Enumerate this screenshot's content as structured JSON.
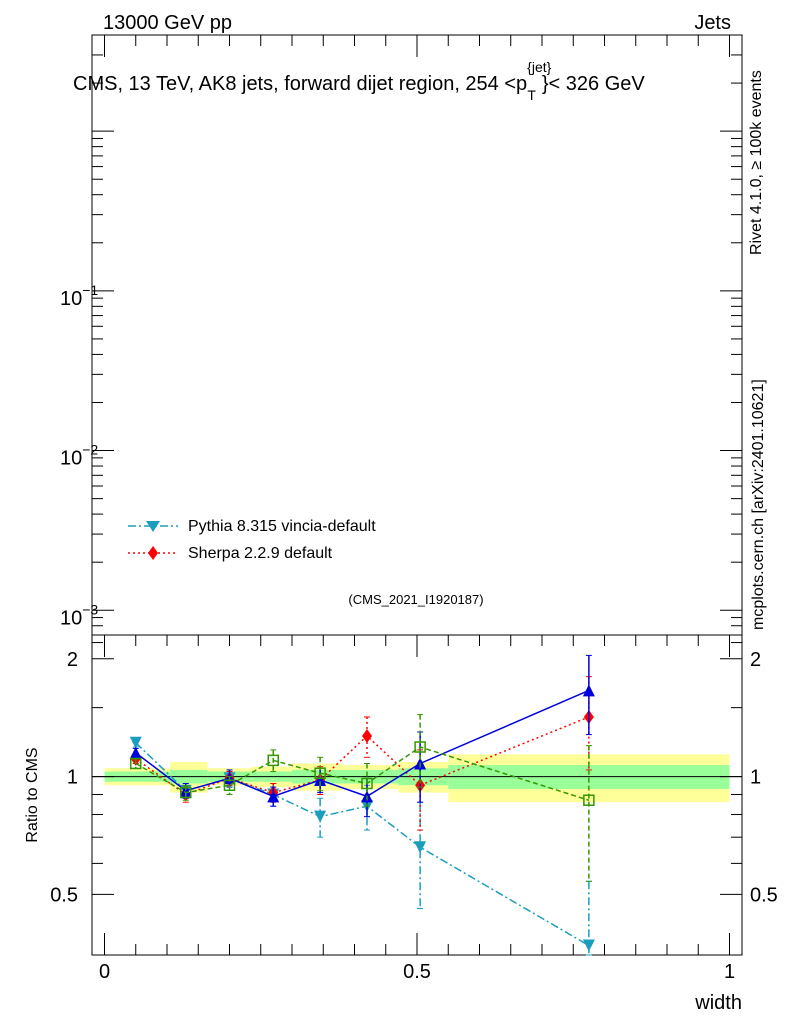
{
  "header": {
    "left": "13000 GeV pp",
    "right": "Jets",
    "title_main": "CMS, 13 TeV, AK8 jets, forward dijet region, 254 <p",
    "title_sup": "{jet}",
    "title_sub": "T",
    "title_end": "}< 326 GeV",
    "side_rivet": "Rivet 4.1.0, ≥ 100k events",
    "side_mcplots": "mcplots.cern.ch [arXiv:2401.10621]",
    "analysis": "(CMS_2021_I1920187)"
  },
  "legend": [
    {
      "label": "Pythia 8.315 vincia-default",
      "color": "#1a9ebc"
    },
    {
      "label": "Sherpa 2.2.9 default",
      "color": "#ff0000"
    }
  ],
  "colors": {
    "pythia": "#1a9ebc",
    "sherpa": "#ff0000",
    "blue": "#0000dd",
    "green": "#339900",
    "band_green": "#99ff99",
    "band_yellow": "#ffff99",
    "annotation": "#999999"
  },
  "chart_data": [
    {
      "type": "line",
      "panel": "main",
      "yscale": "log",
      "ylim": [
        0.0007,
        4
      ],
      "tick_labels": [
        {
          "base": "10",
          "exp": "−1",
          "value": 0.1
        },
        {
          "base": "10",
          "exp": "−2",
          "value": 0.01
        },
        {
          "base": "10",
          "exp": "−3",
          "value": 0.001
        }
      ],
      "series": []
    },
    {
      "type": "line",
      "panel": "ratio",
      "xlabel": "width",
      "ylabel": "Ratio to CMS",
      "xlim": [
        -0.02,
        1.02
      ],
      "ylim": [
        0.35,
        2.3
      ],
      "yscale": "log",
      "x_ticks": [
        {
          "v": 0,
          "label": "0"
        },
        {
          "v": 0.5,
          "label": "0.5"
        },
        {
          "v": 1,
          "label": "1"
        }
      ],
      "y_ticks": [
        {
          "v": 0.5,
          "label": "0.5"
        },
        {
          "v": 1,
          "label": "1"
        },
        {
          "v": 2,
          "label": "2"
        }
      ],
      "bins": [
        {
          "lo": 0.0,
          "hi": 0.105,
          "stat": 0.03,
          "tot": 0.05
        },
        {
          "lo": 0.105,
          "hi": 0.165,
          "stat": 0.04,
          "tot": 0.09
        },
        {
          "lo": 0.165,
          "hi": 0.235,
          "stat": 0.03,
          "tot": 0.05
        },
        {
          "lo": 0.235,
          "hi": 0.3,
          "stat": 0.03,
          "tot": 0.06
        },
        {
          "lo": 0.3,
          "hi": 0.38,
          "stat": 0.04,
          "tot": 0.08
        },
        {
          "lo": 0.38,
          "hi": 0.47,
          "stat": 0.04,
          "tot": 0.07
        },
        {
          "lo": 0.47,
          "hi": 0.55,
          "stat": 0.05,
          "tot": 0.09
        },
        {
          "lo": 0.55,
          "hi": 1.0,
          "stat": 0.07,
          "tot": 0.14
        }
      ],
      "series": [
        {
          "name": "Pythia 8.315 vincia-default",
          "color": "#1a9ebc",
          "marker": "triangle-down",
          "dash": "8,3,2,3",
          "x": [
            0.05,
            0.13,
            0.2,
            0.27,
            0.345,
            0.42,
            0.505,
            0.775
          ],
          "y": [
            1.22,
            0.92,
            0.99,
            0.9,
            0.79,
            0.84,
            0.66,
            0.37
          ],
          "err": [
            0.03,
            0.04,
            0.04,
            0.06,
            0.09,
            0.11,
            0.2,
            0.17
          ]
        },
        {
          "name": "Sherpa 2.2.9 default",
          "color": "#ff0000",
          "marker": "diamond",
          "dash": "2,3",
          "x": [
            0.05,
            0.13,
            0.2,
            0.27,
            0.345,
            0.42,
            0.505,
            0.775
          ],
          "y": [
            1.11,
            0.9,
            0.99,
            0.91,
            0.98,
            1.27,
            0.95,
            1.42
          ],
          "err": [
            0.03,
            0.04,
            0.04,
            0.05,
            0.08,
            0.15,
            0.22,
            0.38
          ]
        },
        {
          "name": "blue",
          "color": "#0000dd",
          "marker": "triangle-up",
          "dash": "",
          "x": [
            0.05,
            0.13,
            0.2,
            0.27,
            0.345,
            0.42,
            0.505,
            0.775
          ],
          "y": [
            1.15,
            0.92,
            0.99,
            0.89,
            0.98,
            0.89,
            1.08,
            1.66
          ],
          "err": [
            0.03,
            0.04,
            0.05,
            0.05,
            0.07,
            0.1,
            0.22,
            0.38
          ]
        },
        {
          "name": "green",
          "color": "#339900",
          "marker": "square-open",
          "dash": "5,3",
          "x": [
            0.05,
            0.13,
            0.2,
            0.27,
            0.345,
            0.42,
            0.505,
            0.775
          ],
          "y": [
            1.08,
            0.91,
            0.95,
            1.1,
            1.02,
            0.96,
            1.19,
            0.87
          ],
          "err": [
            0.03,
            0.04,
            0.05,
            0.07,
            0.1,
            0.12,
            0.25,
            0.33
          ]
        }
      ]
    }
  ]
}
